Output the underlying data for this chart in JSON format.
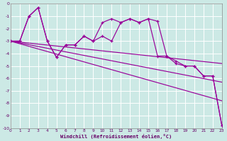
{
  "xlabel": "Windchill (Refroidissement éolien,°C)",
  "bg_color": "#cce9e5",
  "grid_color": "#aad4ce",
  "line_color": "#990099",
  "xlim": [
    0,
    23
  ],
  "ylim": [
    -10,
    0
  ],
  "xticks": [
    0,
    1,
    2,
    3,
    4,
    5,
    6,
    7,
    8,
    9,
    10,
    11,
    12,
    13,
    14,
    15,
    16,
    17,
    18,
    19,
    20,
    21,
    22,
    23
  ],
  "yticks": [
    0,
    -1,
    -2,
    -3,
    -4,
    -5,
    -6,
    -7,
    -8,
    -9,
    -10
  ],
  "series": [
    {
      "x": [
        0,
        1,
        2,
        3,
        4,
        5,
        6,
        7,
        8,
        9,
        10,
        11,
        12,
        13,
        14,
        15,
        16,
        17,
        18,
        19,
        20,
        21,
        22,
        23
      ],
      "y": [
        -3.0,
        -3.0,
        -1.0,
        -0.3,
        -3.0,
        -4.3,
        -3.3,
        -3.3,
        -2.6,
        -3.0,
        -2.6,
        -3.0,
        -1.5,
        -1.2,
        -1.5,
        -1.2,
        -4.2,
        -4.2,
        -4.8,
        -5.0,
        -5.0,
        -5.8,
        -5.8,
        -9.8
      ],
      "marker": true
    },
    {
      "x": [
        0,
        1,
        2,
        3,
        4,
        5,
        6,
        7,
        8,
        9,
        10,
        11,
        12,
        13,
        14,
        15,
        16,
        17,
        18,
        19,
        20,
        21,
        22,
        23
      ],
      "y": [
        -3.0,
        -3.0,
        -1.0,
        -0.3,
        -3.0,
        -4.3,
        -3.3,
        -3.3,
        -2.6,
        -3.0,
        -1.5,
        -1.2,
        -1.5,
        -1.2,
        -1.5,
        -1.2,
        -1.4,
        -4.2,
        -4.6,
        -5.0,
        -5.0,
        -5.8,
        -5.8,
        -9.8
      ],
      "marker": true
    },
    {
      "x": [
        0,
        23
      ],
      "y": [
        -3.0,
        -4.8
      ],
      "marker": false
    },
    {
      "x": [
        0,
        23
      ],
      "y": [
        -3.0,
        -6.3
      ],
      "marker": false
    },
    {
      "x": [
        0,
        23
      ],
      "y": [
        -3.0,
        -7.8
      ],
      "marker": false
    }
  ]
}
